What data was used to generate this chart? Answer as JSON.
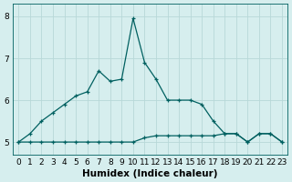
{
  "xlabel": "Humidex (Indice chaleur)",
  "background_color": "#d6eeee",
  "grid_color": "#b8d8d8",
  "line_color": "#006060",
  "x_data": [
    0,
    1,
    2,
    3,
    4,
    5,
    6,
    7,
    8,
    9,
    10,
    11,
    12,
    13,
    14,
    15,
    16,
    17,
    18,
    19,
    20,
    21,
    22,
    23
  ],
  "y1_data": [
    5.0,
    5.2,
    5.5,
    5.7,
    5.9,
    6.1,
    6.2,
    6.7,
    6.45,
    6.5,
    7.95,
    6.9,
    6.5,
    6.0,
    6.0,
    6.0,
    5.9,
    5.5,
    5.2,
    5.2,
    5.0,
    5.2,
    5.2,
    5.0
  ],
  "y2_data": [
    5.0,
    5.0,
    5.0,
    5.0,
    5.0,
    5.0,
    5.0,
    5.0,
    5.0,
    5.0,
    5.0,
    5.1,
    5.15,
    5.15,
    5.15,
    5.15,
    5.15,
    5.15,
    5.2,
    5.2,
    5.0,
    5.2,
    5.2,
    5.0
  ],
  "ylim": [
    4.7,
    8.3
  ],
  "xlim": [
    -0.5,
    23.5
  ],
  "yticks": [
    5,
    6,
    7,
    8
  ],
  "xticks": [
    0,
    1,
    2,
    3,
    4,
    5,
    6,
    7,
    8,
    9,
    10,
    11,
    12,
    13,
    14,
    15,
    16,
    17,
    18,
    19,
    20,
    21,
    22,
    23
  ],
  "tick_fontsize": 6.5,
  "xlabel_fontsize": 7.5,
  "marker": "+",
  "markersize": 3.5,
  "linewidth": 0.9
}
